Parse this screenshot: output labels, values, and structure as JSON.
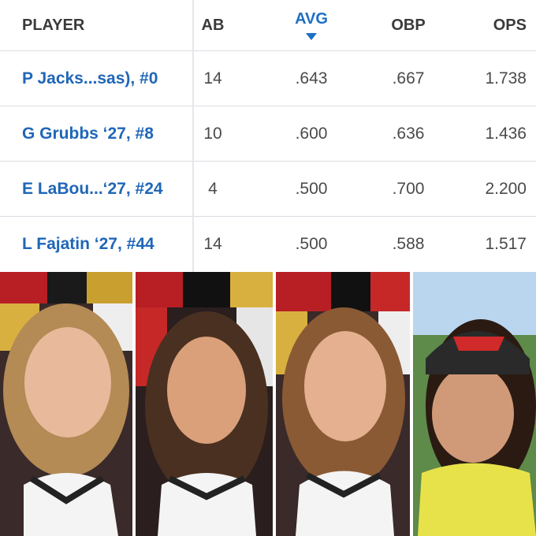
{
  "table": {
    "columns": [
      "PLAYER",
      "AB",
      "AVG",
      "OBP",
      "OPS"
    ],
    "rows": [
      [
        "P Jacks...sas), #0",
        "14",
        ".643",
        ".667",
        "1.738"
      ],
      [
        "G Grubbs ‘27, #8",
        "10",
        ".600",
        ".636",
        "1.436"
      ],
      [
        "E LaBou...‘27, #24",
        "4",
        ".500",
        ".700",
        "2.200"
      ],
      [
        "L Fajatin ‘27, #44",
        "14",
        ".500",
        ".588",
        "1.517"
      ]
    ]
  }
}
